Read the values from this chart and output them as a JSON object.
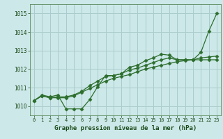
{
  "title": "Graphe pression niveau de la mer (hPa)",
  "bg_color": "#cce8e8",
  "grid_color": "#aacccc",
  "line_color": "#2d6e2d",
  "xlim": [
    -0.5,
    23.5
  ],
  "ylim": [
    1009.5,
    1015.5
  ],
  "yticks": [
    1010,
    1011,
    1012,
    1013,
    1014,
    1015
  ],
  "xticks": [
    0,
    1,
    2,
    3,
    4,
    5,
    6,
    7,
    8,
    9,
    10,
    11,
    12,
    13,
    14,
    15,
    16,
    17,
    18,
    19,
    20,
    21,
    22,
    23
  ],
  "series1": [
    1010.3,
    1010.6,
    1010.5,
    1010.6,
    1009.85,
    1009.85,
    1009.85,
    1010.35,
    1011.05,
    1011.65,
    1011.65,
    1011.75,
    1012.1,
    1012.2,
    1012.45,
    1012.6,
    1012.8,
    1012.75,
    1012.5,
    1012.5,
    1012.5,
    1012.9,
    1014.05,
    1015.0
  ],
  "series2": [
    1010.3,
    1010.55,
    1010.45,
    1010.45,
    1010.45,
    1010.55,
    1010.75,
    1010.95,
    1011.15,
    1011.35,
    1011.5,
    1011.6,
    1011.7,
    1011.85,
    1012.0,
    1012.1,
    1012.2,
    1012.3,
    1012.4,
    1012.45,
    1012.5,
    1012.5,
    1012.5,
    1012.5
  ],
  "series3": [
    1010.3,
    1010.55,
    1010.45,
    1010.5,
    1010.5,
    1010.6,
    1010.8,
    1011.1,
    1011.35,
    1011.6,
    1011.65,
    1011.75,
    1011.95,
    1012.05,
    1012.2,
    1012.35,
    1012.5,
    1012.6,
    1012.5,
    1012.5,
    1012.5,
    1012.6,
    1012.65,
    1012.7
  ]
}
